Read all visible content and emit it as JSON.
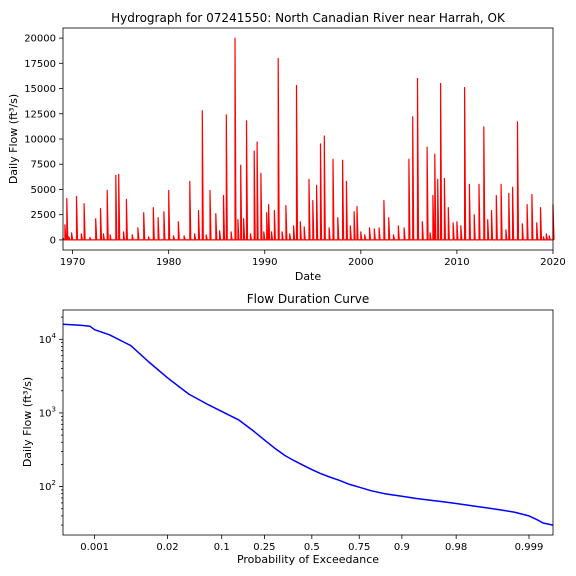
{
  "chart_data": [
    {
      "type": "line",
      "title": "Hydrograph for 07241550: North Canadian River near Harrah, OK",
      "xlabel": "Date",
      "ylabel": "Daily Flow (ft³/s)",
      "xlim": [
        1969,
        2020
      ],
      "ylim": [
        -1000,
        21000
      ],
      "x_ticks": [
        1970,
        1980,
        1990,
        2000,
        2010,
        2020
      ],
      "y_ticks": [
        0,
        2500,
        5000,
        7500,
        10000,
        12500,
        15000,
        17500,
        20000
      ],
      "line_color": "#ff0000",
      "series": [
        {
          "x": [
            1969.0,
            1969.2,
            1969.4,
            1969.6,
            1969.9,
            1970.4,
            1970.9,
            1971.2,
            1971.8,
            1972.4,
            1972.9,
            1973.2,
            1973.6,
            1973.9,
            1974.5,
            1974.8,
            1975.3,
            1975.6,
            1976.2,
            1976.8,
            1977.4,
            1977.9,
            1978.4,
            1978.9,
            1979.5,
            1980.0,
            1980.5,
            1981.0,
            1981.6,
            1982.2,
            1982.7,
            1983.1,
            1983.5,
            1983.9,
            1984.3,
            1984.9,
            1985.3,
            1985.7,
            1986.0,
            1986.5,
            1986.9,
            1987.2,
            1987.5,
            1987.8,
            1988.1,
            1988.5,
            1988.9,
            1989.2,
            1989.6,
            1989.9,
            1990.2,
            1990.4,
            1990.7,
            1991.0,
            1991.4,
            1991.8,
            1992.2,
            1992.6,
            1993.0,
            1993.3,
            1993.7,
            1994.1,
            1994.6,
            1995.0,
            1995.4,
            1995.8,
            1996.2,
            1996.7,
            1997.1,
            1997.6,
            1998.1,
            1998.5,
            1998.9,
            1999.3,
            1999.6,
            2000.0,
            2000.4,
            2000.9,
            2001.4,
            2001.9,
            2002.4,
            2002.9,
            2003.4,
            2003.9,
            2004.5,
            2005.0,
            2005.4,
            2005.9,
            2006.4,
            2006.9,
            2007.2,
            2007.5,
            2007.7,
            2008.0,
            2008.3,
            2008.7,
            2009.1,
            2009.6,
            2010.0,
            2010.4,
            2010.8,
            2011.3,
            2011.8,
            2012.3,
            2012.8,
            2013.2,
            2013.6,
            2014.1,
            2014.6,
            2015.1,
            2015.4,
            2015.8,
            2016.3,
            2016.8,
            2017.3,
            2017.8,
            2018.3,
            2018.7,
            2019.0,
            2019.3,
            2019.6,
            2020.0
          ],
          "y": [
            200,
            1500,
            4100,
            300,
            700,
            4300,
            600,
            3600,
            250,
            2100,
            3100,
            600,
            4900,
            500,
            6400,
            6500,
            800,
            4000,
            500,
            1200,
            2700,
            300,
            3200,
            2200,
            2800,
            4900,
            400,
            1800,
            400,
            5800,
            600,
            2900,
            12800,
            500,
            4900,
            2600,
            900,
            4400,
            12400,
            800,
            20000,
            2000,
            7400,
            2100,
            11800,
            600,
            8800,
            9700,
            6600,
            800,
            2700,
            3500,
            800,
            2900,
            18000,
            800,
            3400,
            600,
            1400,
            15300,
            1800,
            1300,
            6000,
            3900,
            5400,
            9500,
            10300,
            1200,
            8000,
            2200,
            7900,
            5800,
            1400,
            2800,
            3300,
            800,
            500,
            1200,
            1100,
            1200,
            3900,
            2200,
            500,
            1400,
            1200,
            8000,
            12200,
            16000,
            1800,
            9200,
            700,
            4400,
            8500,
            6000,
            15500,
            6100,
            3200,
            1700,
            1800,
            1400,
            15100,
            5500,
            2500,
            5500,
            11200,
            2000,
            2900,
            4400,
            5500,
            1000,
            4600,
            5200,
            11700,
            1600,
            3500,
            4500,
            1700,
            3200,
            300,
            600,
            400,
            3500
          ]
        }
      ]
    },
    {
      "type": "line",
      "title": "Flow Duration Curve",
      "xlabel": "Probability of Exceedance",
      "ylabel": "Daily Flow (ft³/s)",
      "x_scale": "probability",
      "y_scale": "log",
      "xlim": [
        0.0002,
        0.9997
      ],
      "ylim": [
        22,
        25000
      ],
      "x_ticks": [
        0.001,
        0.02,
        0.1,
        0.25,
        0.5,
        0.75,
        0.9,
        0.98,
        0.999
      ],
      "x_tick_labels": [
        "0.001",
        "0.02",
        "0.1",
        "0.25",
        "0.5",
        "0.75",
        "0.9",
        "0.98",
        "0.999"
      ],
      "y_ticks": [
        100,
        1000,
        10000
      ],
      "line_color": "#0000ff",
      "series": [
        {
          "x": [
            0.0002,
            0.0005,
            0.0008,
            0.001,
            0.002,
            0.005,
            0.01,
            0.02,
            0.04,
            0.07,
            0.1,
            0.15,
            0.2,
            0.25,
            0.3,
            0.35,
            0.4,
            0.45,
            0.5,
            0.55,
            0.6,
            0.65,
            0.7,
            0.75,
            0.8,
            0.85,
            0.9,
            0.93,
            0.95,
            0.97,
            0.98,
            0.99,
            0.995,
            0.998,
            0.999,
            0.9993,
            0.9995,
            0.9997
          ],
          "y": [
            16000,
            15500,
            15000,
            13500,
            11500,
            8200,
            5000,
            3000,
            1800,
            1300,
            1050,
            800,
            580,
            430,
            330,
            265,
            225,
            195,
            170,
            150,
            135,
            122,
            108,
            98,
            88,
            80,
            74,
            69,
            66,
            62,
            59,
            54,
            50,
            45,
            40,
            36,
            32,
            30
          ]
        }
      ]
    }
  ]
}
